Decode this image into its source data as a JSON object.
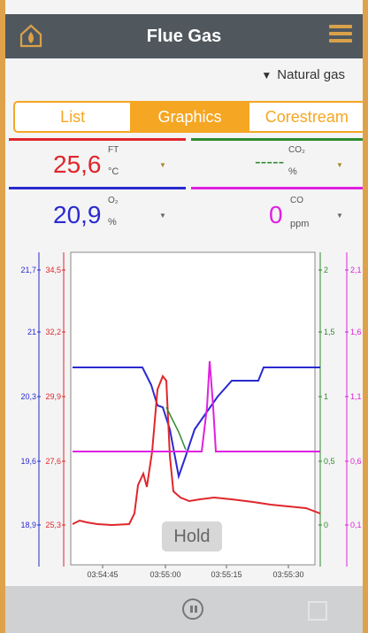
{
  "header": {
    "title": "Flue Gas",
    "home_icon": "flame-home-icon",
    "menu_icon": "hamburger-menu-icon"
  },
  "fuel": {
    "arrow": "▼",
    "label": "Natural gas"
  },
  "tabs": [
    {
      "label": "List",
      "active": false
    },
    {
      "label": "Graphics",
      "active": true
    },
    {
      "label": "Corestream",
      "active": false
    }
  ],
  "tiles": {
    "ft": {
      "name": "FT",
      "value": "25,6",
      "unit": "°C",
      "color": "#e0262b"
    },
    "co2": {
      "name": "CO₂",
      "value": "-----",
      "unit": "%",
      "color": "#2f8a2f"
    },
    "o2": {
      "name": "O₂",
      "value": "20,9",
      "unit": "%",
      "color": "#2a2ad0"
    },
    "co": {
      "name": "CO",
      "value": "0",
      "unit": "ppm",
      "color": "#e020e0"
    }
  },
  "chart_data": {
    "type": "line",
    "x": [
      "03:54:35",
      "03:54:40",
      "03:54:45",
      "03:54:50",
      "03:54:55",
      "03:55:00",
      "03:55:05",
      "03:55:10",
      "03:55:15",
      "03:55:20",
      "03:55:25",
      "03:55:30",
      "03:55:35"
    ],
    "x_ticks": [
      "03:54:45",
      "03:55:00",
      "03:55:15",
      "03:55:30"
    ],
    "axes": [
      {
        "series": "O₂",
        "color": "#2a2ad0",
        "ticks": [
          "21,7",
          "21",
          "20,3",
          "19,6",
          "18,9"
        ],
        "range": [
          18.9,
          21.7
        ]
      },
      {
        "series": "FT",
        "color": "#e0262b",
        "ticks": [
          "34,5",
          "32,2",
          "29,9",
          "27,6",
          "25,3"
        ],
        "range": [
          25.3,
          34.5
        ]
      },
      {
        "series": "CO₂",
        "color": "#2f8a2f",
        "ticks": [
          "2",
          "1,5",
          "1",
          "0,5",
          "0"
        ],
        "range": [
          0,
          2
        ]
      },
      {
        "series": "CO",
        "color": "#e020e0",
        "ticks": [
          "2,1",
          "1,6",
          "1,1",
          "0,6",
          "0,1"
        ],
        "range": [
          0.1,
          2.1
        ]
      }
    ],
    "series": [
      {
        "name": "O₂",
        "color": "#2a2ad0",
        "values": [
          21.0,
          21.0,
          21.0,
          21.0,
          20.8,
          20.1,
          19.9,
          20.5,
          20.7,
          20.7,
          20.8,
          20.8,
          20.8
        ]
      },
      {
        "name": "FT",
        "color": "#e0262b",
        "values": [
          25.3,
          25.4,
          25.2,
          25.5,
          28.5,
          29.0,
          26.0,
          25.8,
          25.7,
          25.6,
          25.6,
          25.5,
          25.4
        ]
      },
      {
        "name": "CO",
        "color": "#e020e0",
        "values": [
          0.6,
          0.6,
          0.6,
          0.6,
          0.6,
          0.6,
          0.6,
          0.6,
          0.6,
          0.6,
          0.6,
          0.6,
          0.6
        ]
      },
      {
        "name": "CO₂",
        "color": "#2f8a2f",
        "values": [
          null,
          null,
          null,
          null,
          0.95,
          0.7,
          0.5,
          null,
          null,
          null,
          null,
          null,
          null
        ]
      }
    ]
  },
  "hold_label": "Hold",
  "footer": {
    "pause_icon": "pause-icon",
    "export_icon": "export-icon"
  }
}
